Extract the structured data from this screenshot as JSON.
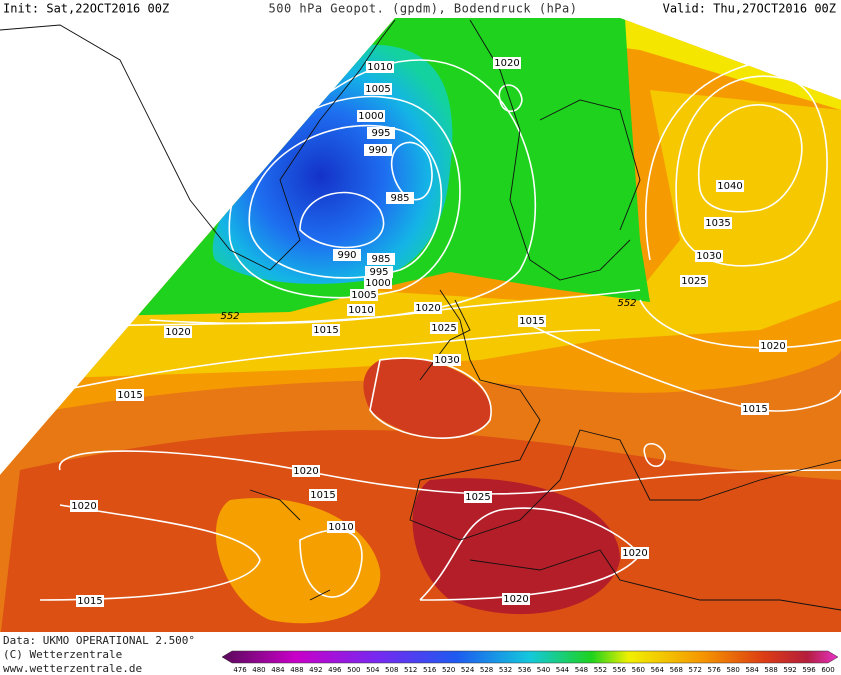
{
  "header": {
    "init": "Init: Sat,22OCT2016 00Z",
    "title": "500 hPa Geopot. (gpdm), Bodendruck (hPa)",
    "valid": "Valid: Thu,27OCT2016 00Z"
  },
  "footer": {
    "source": "Data: UKMO OPERATIONAL 2.500°",
    "copyright": "(C) Wetterzentrale",
    "website": "www.wetterzentrale.de"
  },
  "isobar_labels": [
    1010,
    1005,
    1000,
    995,
    990,
    985,
    990,
    985,
    995,
    1000,
    1005,
    1010,
    1020,
    1015,
    1020,
    1025,
    1030,
    1015,
    1020,
    1040,
    1035,
    1030,
    1025,
    1020,
    1015,
    1015,
    1020,
    1015,
    1020,
    1025,
    1010,
    1020,
    1020,
    1015
  ],
  "geopotential_labels": [
    552,
    552
  ],
  "colorbar": {
    "levels": [
      476,
      480,
      484,
      488,
      492,
      496,
      500,
      504,
      508,
      512,
      516,
      520,
      524,
      528,
      532,
      536,
      540,
      544,
      548,
      552,
      556,
      560,
      564,
      568,
      572,
      576,
      580,
      584,
      588,
      592,
      596,
      600
    ]
  }
}
